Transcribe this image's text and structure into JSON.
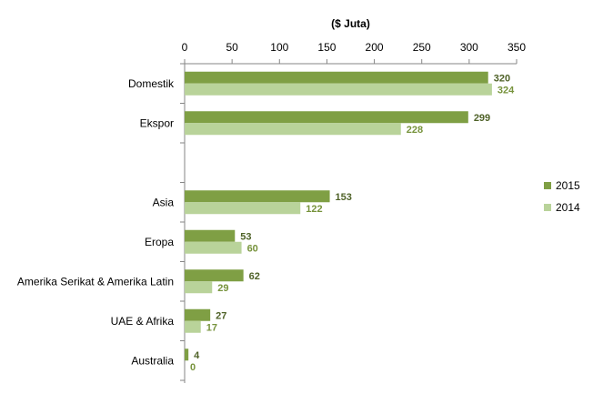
{
  "chart_data": {
    "type": "bar",
    "orientation": "horizontal",
    "title": "($ Juta)",
    "xlabel": "($ Juta)",
    "ylabel": "",
    "xlim": [
      0,
      350
    ],
    "xticks": [
      0,
      50,
      100,
      150,
      200,
      250,
      300,
      350
    ],
    "axis_position": "top",
    "grid": false,
    "legend_position": "right",
    "categories": [
      "Domestik",
      "Ekspor",
      "",
      "Asia",
      "Eropa",
      "Amerika Serikat & Amerika Latin",
      "UAE & Afrika",
      "Australia"
    ],
    "series": [
      {
        "name": "2015",
        "color": "#7f9f44",
        "values": [
          320,
          299,
          null,
          153,
          53,
          62,
          27,
          4
        ]
      },
      {
        "name": "2014",
        "color": "#b9d39a",
        "values": [
          324,
          228,
          null,
          122,
          60,
          29,
          17,
          0
        ]
      }
    ],
    "label_colors": {
      "2015": "#4f6228",
      "2014": "#77933c"
    }
  }
}
